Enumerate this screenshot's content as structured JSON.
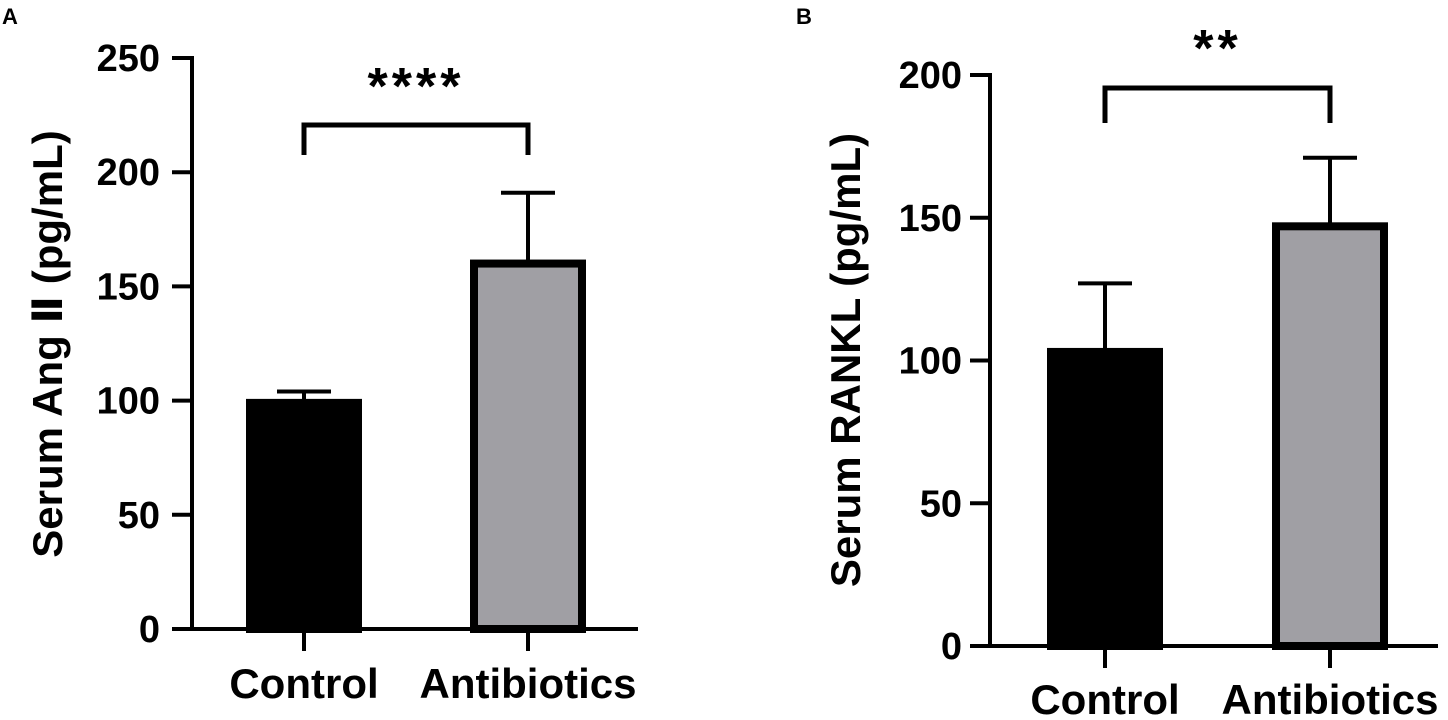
{
  "chart_data": [
    {
      "type": "bar",
      "panel": "A",
      "categories": [
        "Control",
        "Antibiotics"
      ],
      "values": [
        99,
        160
      ],
      "error_upper": [
        104,
        191
      ],
      "ylabel": "Serum Ang Ⅱ (pg/mL)",
      "xlabel": "",
      "ylim": [
        0,
        250
      ],
      "yticks": [
        "0",
        "50",
        "100",
        "150",
        "200",
        "250"
      ],
      "bar_colors": [
        "#000000",
        "#a09fa4"
      ],
      "significance": "****",
      "grid": false
    },
    {
      "type": "bar",
      "panel": "B",
      "categories": [
        "Control",
        "Antibiotics"
      ],
      "values": [
        103,
        147
      ],
      "error_upper": [
        127,
        171
      ],
      "ylabel": "Serum RANKL (pg/mL)",
      "xlabel": "",
      "ylim": [
        0,
        200
      ],
      "yticks": [
        "0",
        "50",
        "100",
        "150",
        "200"
      ],
      "bar_colors": [
        "#000000",
        "#a09fa4"
      ],
      "significance": "**",
      "grid": false
    }
  ]
}
